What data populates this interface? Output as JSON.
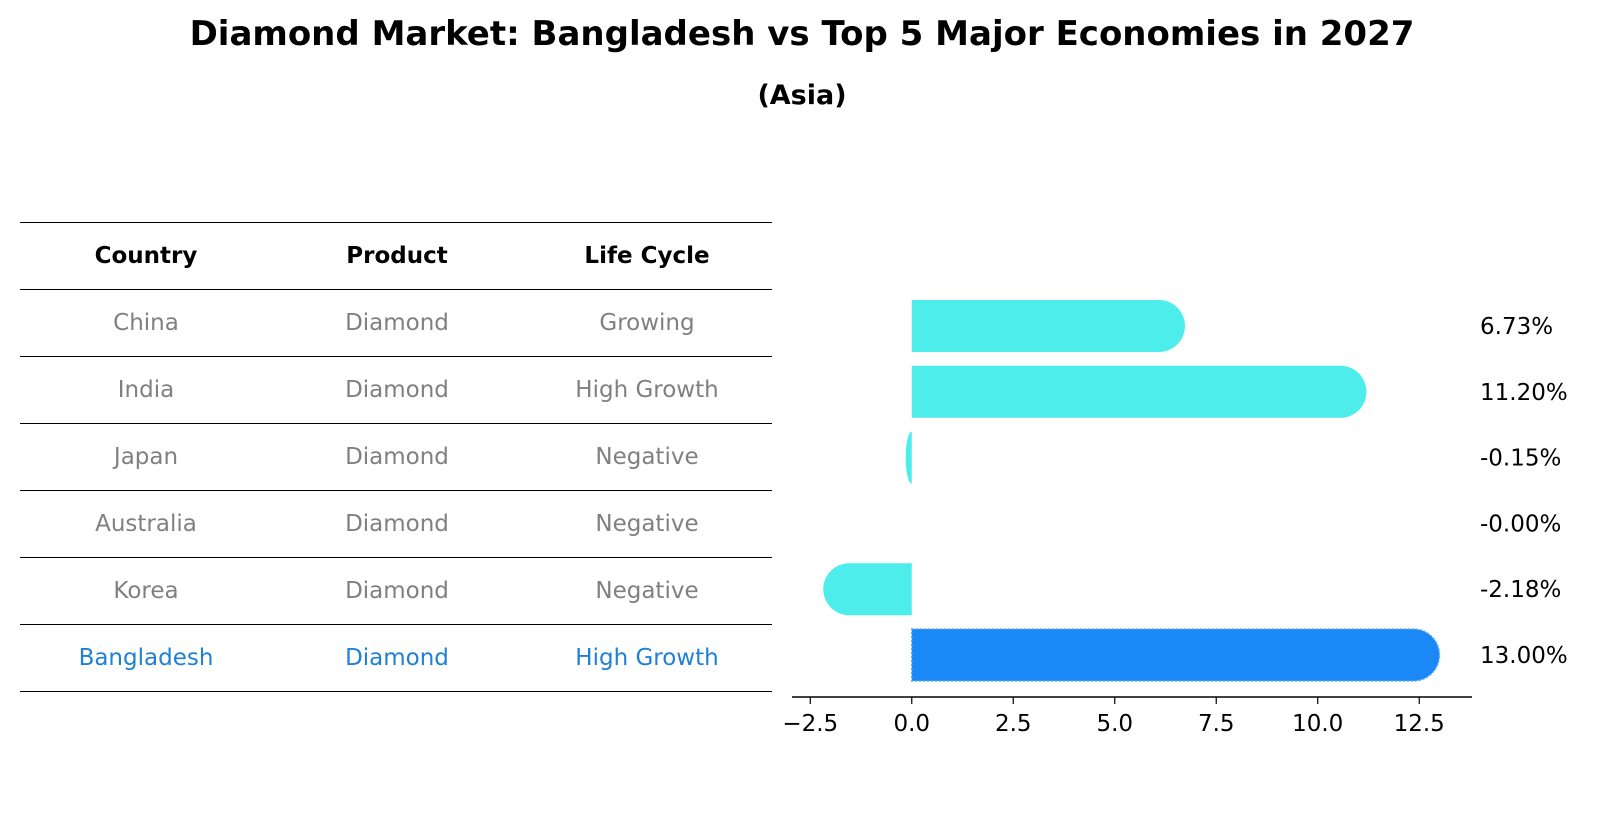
{
  "title": "Diamond Market: Bangladesh vs Top 5 Major Economies in 2027",
  "subtitle": "(Asia)",
  "table": {
    "headers": [
      "Country",
      "Product",
      "Life Cycle"
    ],
    "rows": [
      {
        "country": "China",
        "product": "Diamond",
        "life_cycle": "Growing"
      },
      {
        "country": "India",
        "product": "Diamond",
        "life_cycle": "High Growth"
      },
      {
        "country": "Japan",
        "product": "Diamond",
        "life_cycle": "Negative"
      },
      {
        "country": "Australia",
        "product": "Diamond",
        "life_cycle": "Negative"
      },
      {
        "country": "Korea",
        "product": "Diamond",
        "life_cycle": "Negative"
      },
      {
        "country": "Bangladesh",
        "product": "Diamond",
        "life_cycle": "High Growth"
      }
    ]
  },
  "colors": {
    "bar": "#4DEDEB",
    "highlight_bar": "#1A88F5",
    "highlight_text": "#1F80D6",
    "muted_text": "#808080",
    "text": "#000000"
  },
  "chart_data": {
    "type": "bar",
    "orientation": "horizontal",
    "categories": [
      "China",
      "India",
      "Japan",
      "Australia",
      "Korea",
      "Bangladesh"
    ],
    "values": [
      6.73,
      11.2,
      -0.15,
      -0.0,
      -2.18,
      13.0
    ],
    "value_labels": [
      "6.73%",
      "11.20%",
      "-0.15%",
      "-0.00%",
      "-2.18%",
      "13.00%"
    ],
    "highlight": "Bangladesh",
    "xlim": [
      -2.95,
      13.8
    ],
    "xticks": [
      -2.5,
      0.0,
      2.5,
      5.0,
      7.5,
      10.0,
      12.5
    ],
    "xtick_labels": [
      "−2.5",
      "0.0",
      "2.5",
      "5.0",
      "7.5",
      "10.0",
      "12.5"
    ],
    "xlabel": "",
    "ylabel": "",
    "grid": false
  }
}
